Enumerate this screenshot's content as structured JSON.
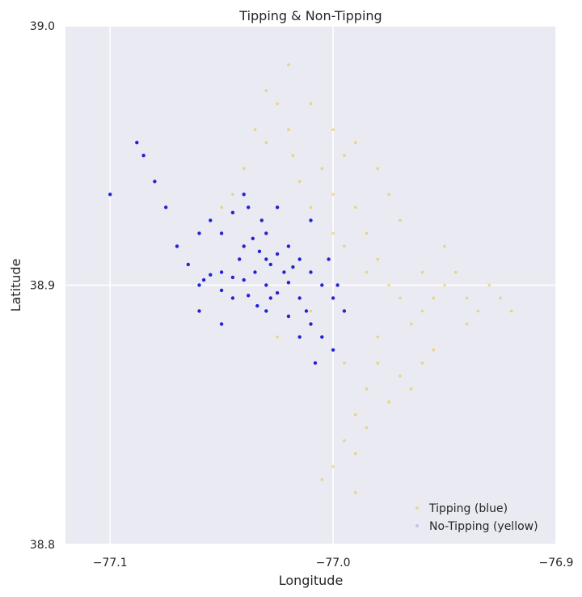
{
  "chart_data": {
    "type": "scatter",
    "title": "Tipping & Non-Tipping",
    "xlabel": "Longitude",
    "ylabel": "Latitude",
    "xlim": [
      -77.12,
      -76.9
    ],
    "ylim": [
      38.8,
      39.0
    ],
    "xticks": [
      -77.1,
      -77.0,
      -76.9
    ],
    "xtick_labels": [
      "−77.1",
      "−77.0",
      "−76.9"
    ],
    "yticks": [
      38.8,
      38.9,
      39.0
    ],
    "ytick_labels": [
      "38.8",
      "38.9",
      "39.0"
    ],
    "grid": true,
    "legend_position": "bottom-right",
    "series": [
      {
        "name": "Tipping (blue)",
        "color": "#0000cc",
        "points": [
          [
            -77.035,
            38.905
          ],
          [
            -77.03,
            38.9
          ],
          [
            -77.025,
            38.897
          ],
          [
            -77.04,
            38.902
          ],
          [
            -77.045,
            38.903
          ],
          [
            -77.028,
            38.908
          ],
          [
            -77.033,
            38.913
          ],
          [
            -77.02,
            38.901
          ],
          [
            -77.038,
            38.896
          ],
          [
            -77.05,
            38.905
          ],
          [
            -77.055,
            38.904
          ],
          [
            -77.06,
            38.9
          ],
          [
            -77.042,
            38.91
          ],
          [
            -77.036,
            38.918
          ],
          [
            -77.03,
            38.92
          ],
          [
            -77.025,
            38.912
          ],
          [
            -77.018,
            38.907
          ],
          [
            -77.015,
            38.895
          ],
          [
            -77.012,
            38.89
          ],
          [
            -77.01,
            38.885
          ],
          [
            -77.005,
            38.88
          ],
          [
            -77.0,
            38.875
          ],
          [
            -77.008,
            38.87
          ],
          [
            -77.015,
            38.88
          ],
          [
            -77.02,
            38.888
          ],
          [
            -77.032,
            38.925
          ],
          [
            -77.038,
            38.93
          ],
          [
            -77.04,
            38.935
          ],
          [
            -77.045,
            38.928
          ],
          [
            -77.05,
            38.92
          ],
          [
            -77.065,
            38.908
          ],
          [
            -77.07,
            38.915
          ],
          [
            -77.075,
            38.93
          ],
          [
            -77.08,
            38.94
          ],
          [
            -77.085,
            38.95
          ],
          [
            -77.088,
            38.955
          ],
          [
            -77.06,
            38.92
          ],
          [
            -77.055,
            38.925
          ],
          [
            -77.03,
            38.89
          ],
          [
            -77.022,
            38.905
          ],
          [
            -77.028,
            38.895
          ],
          [
            -77.034,
            38.892
          ],
          [
            -77.045,
            38.895
          ],
          [
            -77.05,
            38.898
          ],
          [
            -77.058,
            38.902
          ],
          [
            -77.02,
            38.915
          ],
          [
            -77.015,
            38.91
          ],
          [
            -77.01,
            38.905
          ],
          [
            -77.005,
            38.9
          ],
          [
            -77.0,
            38.895
          ],
          [
            -76.995,
            38.89
          ],
          [
            -76.998,
            38.9
          ],
          [
            -77.002,
            38.91
          ],
          [
            -77.03,
            38.91
          ],
          [
            -77.04,
            38.915
          ],
          [
            -77.1,
            38.935
          ],
          [
            -77.05,
            38.885
          ],
          [
            -77.06,
            38.89
          ],
          [
            -77.025,
            38.93
          ],
          [
            -77.01,
            38.925
          ]
        ]
      },
      {
        "name": "No-Tipping (yellow)",
        "color": "#e6b800",
        "points": [
          [
            -77.02,
            38.96
          ],
          [
            -77.025,
            38.97
          ],
          [
            -77.018,
            38.95
          ],
          [
            -77.03,
            38.955
          ],
          [
            -77.015,
            38.94
          ],
          [
            -77.01,
            38.93
          ],
          [
            -77.005,
            38.945
          ],
          [
            -77.0,
            38.935
          ],
          [
            -76.995,
            38.95
          ],
          [
            -76.99,
            38.93
          ],
          [
            -76.985,
            38.92
          ],
          [
            -76.98,
            38.91
          ],
          [
            -76.975,
            38.9
          ],
          [
            -76.97,
            38.895
          ],
          [
            -76.965,
            38.885
          ],
          [
            -76.96,
            38.89
          ],
          [
            -76.955,
            38.895
          ],
          [
            -76.95,
            38.9
          ],
          [
            -76.945,
            38.905
          ],
          [
            -76.94,
            38.895
          ],
          [
            -76.935,
            38.89
          ],
          [
            -76.93,
            38.9
          ],
          [
            -76.925,
            38.895
          ],
          [
            -76.92,
            38.89
          ],
          [
            -76.94,
            38.885
          ],
          [
            -76.98,
            38.87
          ],
          [
            -76.985,
            38.86
          ],
          [
            -76.99,
            38.85
          ],
          [
            -76.995,
            38.84
          ],
          [
            -77.0,
            38.83
          ],
          [
            -77.005,
            38.825
          ],
          [
            -76.99,
            38.82
          ],
          [
            -76.975,
            38.855
          ],
          [
            -76.97,
            38.865
          ],
          [
            -76.965,
            38.86
          ],
          [
            -76.96,
            38.87
          ],
          [
            -76.955,
            38.875
          ],
          [
            -77.02,
            38.985
          ],
          [
            -77.03,
            38.975
          ],
          [
            -77.01,
            38.97
          ],
          [
            -77.0,
            38.96
          ],
          [
            -76.99,
            38.955
          ],
          [
            -76.98,
            38.945
          ],
          [
            -76.975,
            38.935
          ],
          [
            -76.97,
            38.925
          ],
          [
            -77.035,
            38.96
          ],
          [
            -77.04,
            38.945
          ],
          [
            -77.045,
            38.935
          ],
          [
            -77.05,
            38.93
          ],
          [
            -76.995,
            38.915
          ],
          [
            -77.0,
            38.92
          ],
          [
            -76.985,
            38.905
          ],
          [
            -77.01,
            38.89
          ],
          [
            -77.025,
            38.88
          ],
          [
            -76.98,
            38.88
          ],
          [
            -76.95,
            38.915
          ],
          [
            -76.96,
            38.905
          ],
          [
            -76.99,
            38.835
          ],
          [
            -76.985,
            38.845
          ],
          [
            -76.995,
            38.87
          ]
        ]
      }
    ]
  }
}
